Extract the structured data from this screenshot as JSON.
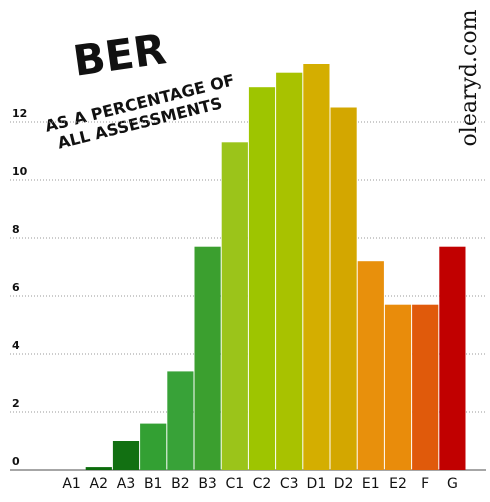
{
  "chart_data": {
    "type": "bar",
    "title": "BER",
    "subtitle": [
      "AS A PERCENTAGE OF",
      "ALL ASSESSMENTS"
    ],
    "annotation": "olearyd.com",
    "categories": [
      "A1",
      "A2",
      "A3",
      "B1",
      "B2",
      "B3",
      "C1",
      "C2",
      "C3",
      "D1",
      "D2",
      "E1",
      "E2",
      "F",
      "G"
    ],
    "values": [
      0,
      0.1,
      1.0,
      1.6,
      3.4,
      7.7,
      11.3,
      13.2,
      13.7,
      14.0,
      12.5,
      7.2,
      5.7,
      5.7,
      7.7
    ],
    "colors": [
      "#1a7a1a",
      "#0b6b0b",
      "#127012",
      "#33a033",
      "#38a238",
      "#3b9f2f",
      "#9bc41a",
      "#9ec500",
      "#a8c200",
      "#d4ae00",
      "#d3a700",
      "#e8900c",
      "#e98c0b",
      "#e05a0b",
      "#c10000"
    ],
    "ylim": [
      0,
      16
    ],
    "yticks": [
      0,
      2,
      4,
      6,
      8,
      10,
      12
    ],
    "grid": true
  }
}
